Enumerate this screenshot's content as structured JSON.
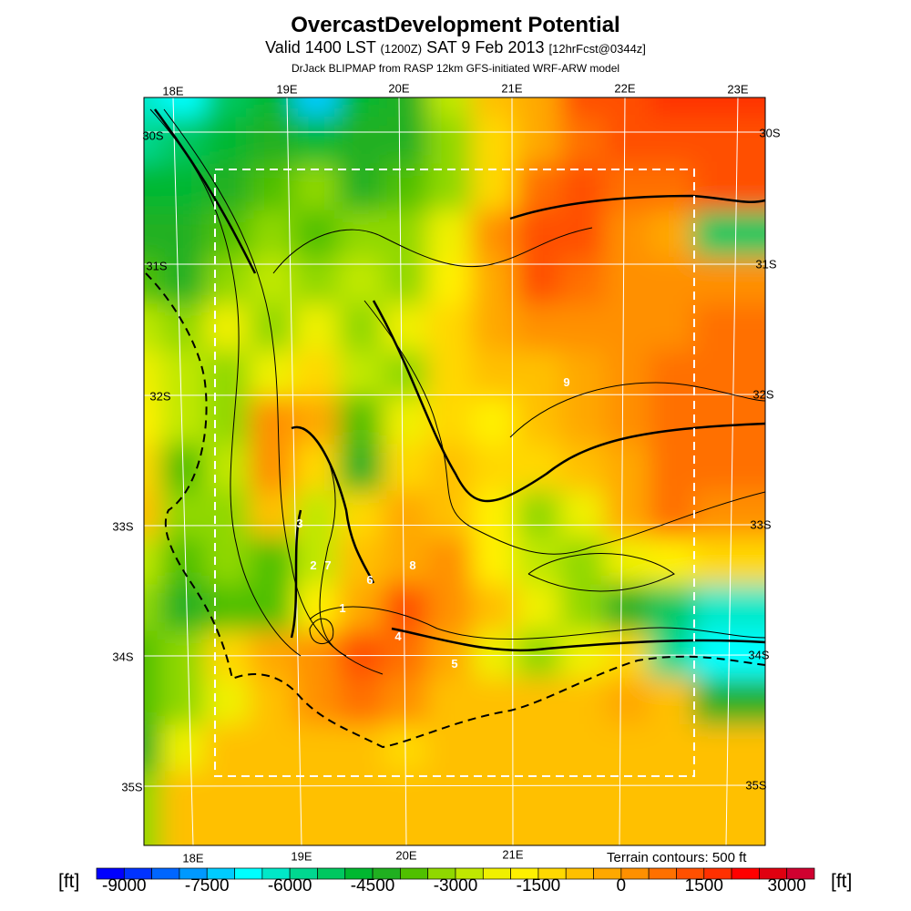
{
  "header": {
    "title": "OvercastDevelopment Potential",
    "valid_main": "Valid 1400 LST",
    "valid_utc": "(1200Z)",
    "valid_date": "SAT 9 Feb 2013",
    "forecast": "[12hrFcst@0344z]",
    "source": "DrJack BLIPMAP from RASP 12km GFS-initiated WRF-ARW model"
  },
  "map": {
    "lon_labels_top": [
      "18E",
      "19E",
      "20E",
      "21E",
      "22E",
      "23E"
    ],
    "lon_labels_bottom": [
      "18E",
      "19E",
      "20E",
      "21E"
    ],
    "lat_labels_left": [
      "30S",
      "31S",
      "32S",
      "33S",
      "34S",
      "35S"
    ],
    "lat_labels_right": [
      "30S",
      "31S",
      "32S",
      "33S",
      "34S",
      "35S"
    ],
    "contour_labels": [
      "3",
      "2",
      "7",
      "6",
      "8",
      "1",
      "4",
      "5",
      "9"
    ],
    "terrain_note": "Terrain contours: 500 ft"
  },
  "colorbar": {
    "unit_left": "[ft]",
    "unit_right": "[ft]",
    "tick_labels": [
      "-9000",
      "-7500",
      "-6000",
      "-4500",
      "-3000",
      "-1500",
      "0",
      "1500",
      "3000"
    ],
    "colors": [
      "#0000ff",
      "#0033ff",
      "#0066ff",
      "#0099ff",
      "#00ccff",
      "#00ffff",
      "#00e8c8",
      "#00d890",
      "#00c860",
      "#00b830",
      "#20b020",
      "#50c000",
      "#90d800",
      "#c0e800",
      "#f0f000",
      "#fff000",
      "#ffd800",
      "#ffc000",
      "#ffa800",
      "#ff9000",
      "#ff7000",
      "#ff5000",
      "#ff3000",
      "#ff0000",
      "#e00010",
      "#d00030"
    ]
  }
}
